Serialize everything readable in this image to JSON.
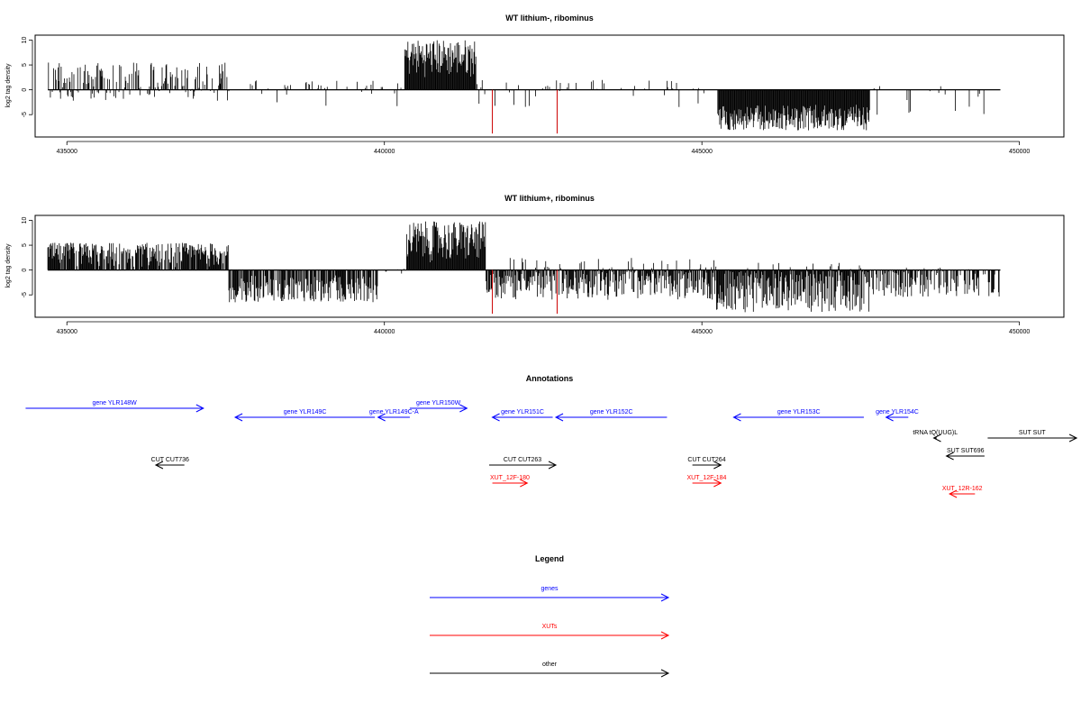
{
  "chart_data": [
    {
      "type": "bar",
      "title": "WT lithium-, ribominus",
      "xlabel": "",
      "ylabel": "log2 tag density",
      "xlim": [
        434500,
        450700
      ],
      "ylim": [
        -9.5,
        11
      ],
      "xticks": [
        435000,
        440000,
        445000,
        450000
      ],
      "xtick_labels": [
        "435000",
        "440000",
        "445000",
        "450000"
      ],
      "yticks": [
        -5,
        0,
        5,
        10
      ],
      "ytick_labels": [
        "-5",
        "0",
        "5",
        "10"
      ],
      "baseline_range": [
        434700,
        449700
      ],
      "highlight_color": "#cc0000",
      "highlight_values": [
        {
          "x": 441700,
          "y": -8.8
        },
        {
          "x": 442720,
          "y": -8.8
        }
      ],
      "regions": [
        {
          "from": 434700,
          "to": 437600,
          "min": -2.2,
          "max": 5.5,
          "density": 0.55,
          "weight": 0.45
        },
        {
          "from": 437600,
          "to": 440300,
          "min": -3.5,
          "max": 2.0,
          "density": 0.12,
          "weight": 0.5
        },
        {
          "from": 440320,
          "to": 441450,
          "min": 2.5,
          "max": 10.2,
          "density": 1.0,
          "weight": 1.0
        },
        {
          "from": 441450,
          "to": 445200,
          "min": -3.5,
          "max": 2.0,
          "density": 0.12,
          "weight": 0.5
        },
        {
          "from": 445250,
          "to": 447650,
          "min": -8.2,
          "max": -3.0,
          "density": 1.0,
          "weight": -1.0
        },
        {
          "from": 447650,
          "to": 449700,
          "min": -5.8,
          "max": 1.0,
          "density": 0.07,
          "weight": -0.6
        }
      ]
    },
    {
      "type": "bar",
      "title": "WT lithium+, ribominus",
      "xlabel": "",
      "ylabel": "log2 tag density",
      "xlim": [
        434500,
        450700
      ],
      "ylim": [
        -9.5,
        11
      ],
      "xticks": [
        435000,
        440000,
        445000,
        450000
      ],
      "xtick_labels": [
        "435000",
        "440000",
        "445000",
        "450000"
      ],
      "yticks": [
        -5,
        0,
        5,
        10
      ],
      "ytick_labels": [
        "-5",
        "0",
        "5",
        "10"
      ],
      "baseline_range": [
        434700,
        449700
      ],
      "highlight_color": "#cc0000",
      "highlight_values": [
        {
          "x": 441700,
          "y": -8.8
        },
        {
          "x": 442720,
          "y": -8.8
        }
      ],
      "regions": [
        {
          "from": 434700,
          "to": 437550,
          "min": 0.5,
          "max": 5.5,
          "density": 0.85,
          "weight": 1.0
        },
        {
          "from": 437550,
          "to": 439900,
          "min": -6.5,
          "max": -1.0,
          "density": 0.75,
          "weight": -1.0
        },
        {
          "from": 439900,
          "to": 440350,
          "min": -1.0,
          "max": 0.5,
          "density": 0.1,
          "weight": 0.0
        },
        {
          "from": 440350,
          "to": 441600,
          "min": 1.5,
          "max": 9.8,
          "density": 1.0,
          "weight": 1.0
        },
        {
          "from": 441600,
          "to": 445200,
          "min": -6.0,
          "max": 2.5,
          "density": 0.85,
          "weight": -0.75
        },
        {
          "from": 445200,
          "to": 447650,
          "min": -8.5,
          "max": 1.5,
          "density": 1.0,
          "weight": -0.9
        },
        {
          "from": 447650,
          "to": 449700,
          "min": -5.5,
          "max": 0.5,
          "density": 0.5,
          "weight": -0.8
        }
      ]
    },
    {
      "type": "annotation-track",
      "title": "Annotations",
      "xlim": [
        434500,
        450700
      ],
      "colors": {
        "gene": "#0000ff",
        "xut": "#ff0000",
        "other": "#000000"
      },
      "features": [
        {
          "label": "gene YLR148W",
          "kind": "gene",
          "start": 434350,
          "end": 437150,
          "strand": "+",
          "row": 0
        },
        {
          "label": "gene YLR149C",
          "kind": "gene",
          "start": 437650,
          "end": 439850,
          "strand": "-",
          "row": 1
        },
        {
          "label": "gene YLR149C-A",
          "kind": "gene",
          "start": 439900,
          "end": 440400,
          "strand": "-",
          "row": 1
        },
        {
          "label": "gene YLR150W",
          "kind": "gene",
          "start": 440400,
          "end": 441300,
          "strand": "+",
          "row": 0
        },
        {
          "label": "gene YLR151C",
          "kind": "gene",
          "start": 441700,
          "end": 442650,
          "strand": "-",
          "row": 1
        },
        {
          "label": "gene YLR152C",
          "kind": "gene",
          "start": 442700,
          "end": 444450,
          "strand": "-",
          "row": 1
        },
        {
          "label": "gene YLR153C",
          "kind": "gene",
          "start": 445500,
          "end": 447550,
          "strand": "-",
          "row": 1
        },
        {
          "label": "gene YLR154C",
          "kind": "gene",
          "start": 447900,
          "end": 448250,
          "strand": "-",
          "row": 1
        },
        {
          "label": "tRNA tQ(UUG)L",
          "kind": "other",
          "start": 448650,
          "end": 448700,
          "strand": "-",
          "row": 2
        },
        {
          "label": "SUT SUT696",
          "kind": "other",
          "start": 448850,
          "end": 449450,
          "strand": "-",
          "row": 3
        },
        {
          "label": "SUT SUT",
          "kind": "other",
          "start": 449500,
          "end": 450900,
          "strand": "+",
          "row": 2
        },
        {
          "label": "CUT CUT736",
          "kind": "other",
          "start": 436400,
          "end": 436850,
          "strand": "-",
          "row": 4
        },
        {
          "label": "CUT CUT263",
          "kind": "other",
          "start": 441650,
          "end": 442700,
          "strand": "+",
          "row": 4
        },
        {
          "label": "CUT CUT264",
          "kind": "other",
          "start": 444850,
          "end": 445300,
          "strand": "+",
          "row": 4
        },
        {
          "label": "XUT_12F-180",
          "kind": "xut",
          "start": 441700,
          "end": 442250,
          "strand": "+",
          "row": 5
        },
        {
          "label": "XUT_12F-184",
          "kind": "xut",
          "start": 444850,
          "end": 445300,
          "strand": "+",
          "row": 5
        },
        {
          "label": "XUT_12R-162",
          "kind": "xut",
          "start": 448900,
          "end": 449300,
          "strand": "-",
          "row": 6
        }
      ]
    },
    {
      "type": "legend",
      "title": "Legend",
      "entries": [
        {
          "label": "genes",
          "color": "#0000ff"
        },
        {
          "label": "XUTs",
          "color": "#ff0000"
        },
        {
          "label": "other",
          "color": "#000000"
        }
      ]
    }
  ]
}
